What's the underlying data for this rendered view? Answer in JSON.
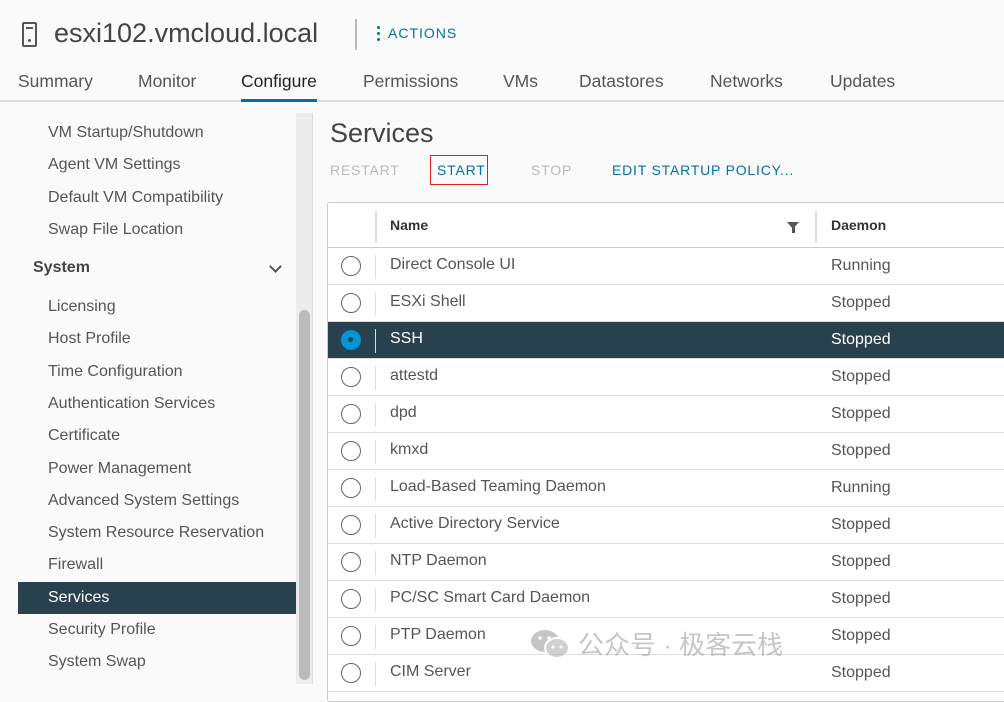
{
  "header": {
    "title": "esxi102.vmcloud.local",
    "actions_label": "ACTIONS"
  },
  "tabs": [
    "Summary",
    "Monitor",
    "Configure",
    "Permissions",
    "VMs",
    "Datastores",
    "Networks",
    "Updates"
  ],
  "active_tab": "Configure",
  "sidebar": {
    "items_top": [
      "VM Startup/Shutdown",
      "Agent VM Settings",
      "Default VM Compatibility",
      "Swap File Location"
    ],
    "group": "System",
    "items_system": [
      "Licensing",
      "Host Profile",
      "Time Configuration",
      "Authentication Services",
      "Certificate",
      "Power Management",
      "Advanced System Settings",
      "System Resource Reservation",
      "Firewall",
      "Services",
      "Security Profile",
      "System Swap"
    ],
    "selected": "Services"
  },
  "main": {
    "title": "Services",
    "toolbar": {
      "restart": "RESTART",
      "start": "START",
      "stop": "STOP",
      "edit": "EDIT STARTUP POLICY..."
    },
    "columns": [
      "Name",
      "Daemon"
    ],
    "rows": [
      {
        "name": "Direct Console UI",
        "daemon": "Running"
      },
      {
        "name": "ESXi Shell",
        "daemon": "Stopped"
      },
      {
        "name": "SSH",
        "daemon": "Stopped",
        "selected": true
      },
      {
        "name": "attestd",
        "daemon": "Stopped"
      },
      {
        "name": "dpd",
        "daemon": "Stopped"
      },
      {
        "name": "kmxd",
        "daemon": "Stopped"
      },
      {
        "name": "Load-Based Teaming Daemon",
        "daemon": "Running"
      },
      {
        "name": "Active Directory Service",
        "daemon": "Stopped"
      },
      {
        "name": "NTP Daemon",
        "daemon": "Stopped"
      },
      {
        "name": "PC/SC Smart Card Daemon",
        "daemon": "Stopped"
      },
      {
        "name": "PTP Daemon",
        "daemon": "Stopped"
      },
      {
        "name": "CIM Server",
        "daemon": "Stopped"
      }
    ]
  },
  "watermark": "公众号 · 极客云栈",
  "colors": {
    "accent": "#0072a3",
    "selected_bg": "#29414e",
    "radio_selected": "#0095d3",
    "highlight_box": "#e02020"
  }
}
